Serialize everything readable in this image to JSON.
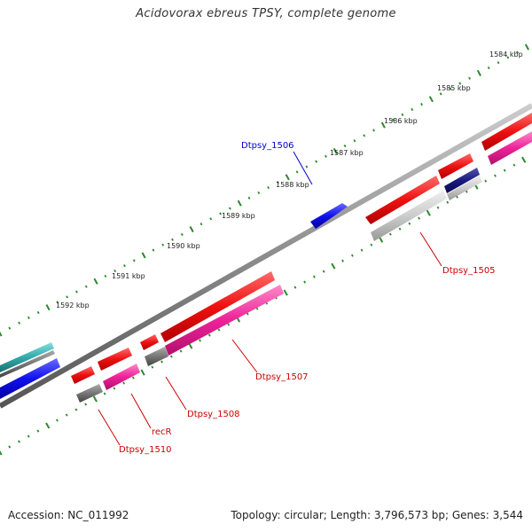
{
  "title": "Acidovorax ebreus TPSY, complete genome",
  "footer": {
    "accession": "Accession: NC_011992",
    "stats": "Topology: circular; Length: 3,796,573 bp; Genes: 3,544"
  },
  "ruler": {
    "labels": [
      "1584 kbp",
      "1585 kbp",
      "1586 kbp",
      "1587 kbp",
      "1588 kbp",
      "1589 kbp",
      "1590 kbp",
      "1591 kbp",
      "1592 kbp"
    ],
    "tick_color": "#2a8a2a"
  },
  "gene_labels": [
    {
      "name": "Dtpsy_1506",
      "color": "#0000cc"
    },
    {
      "name": "Dtpsy_1505",
      "color": "#cc0000"
    },
    {
      "name": "Dtpsy_1507",
      "color": "#cc0000"
    },
    {
      "name": "Dtpsy_1508",
      "color": "#cc0000"
    },
    {
      "name": "recR",
      "color": "#cc0000"
    },
    {
      "name": "Dtpsy_1510",
      "color": "#cc0000"
    }
  ],
  "colors": {
    "backbone": "#8c8c8c",
    "cds_red": "#ee1111",
    "cds_blue": "#1111ee",
    "cds_pink": "#ee2299",
    "cds_gray": "#777777",
    "cds_lightgray": "#c8c8c8",
    "cds_navy": "#1a1a80",
    "cds_teal": "#33aaaa"
  }
}
